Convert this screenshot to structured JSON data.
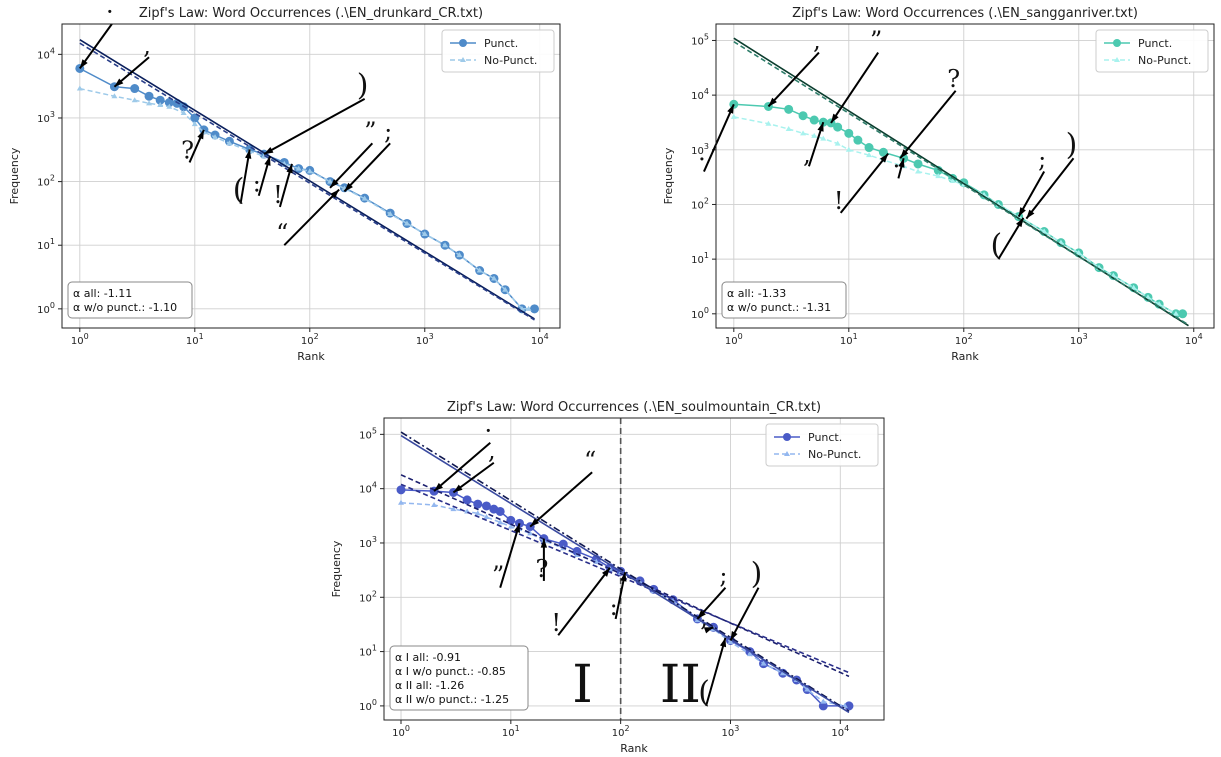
{
  "chart_data": [
    {
      "type": "line",
      "title": "Zipf's Law: Word Occurrences (.\\EN_drunkard_CR.txt)",
      "xlabel": "Rank",
      "ylabel": "Frequency",
      "xscale": "log",
      "yscale": "log",
      "xlim": [
        0.7,
        15000
      ],
      "ylim": [
        0.5,
        30000
      ],
      "grid": true,
      "legend_position": "top-right",
      "x_ticks": [
        "10^0",
        "10^1",
        "10^2",
        "10^3",
        "10^4"
      ],
      "y_ticks": [
        "10^0",
        "10^1",
        "10^2",
        "10^3",
        "10^4"
      ],
      "series": [
        {
          "name": "Punct.",
          "color": "#4f8bc9",
          "style": "solid-circle",
          "points": [
            [
              1,
              6000
            ],
            [
              2,
              3100
            ],
            [
              3,
              2900
            ],
            [
              4,
              2200
            ],
            [
              5,
              1900
            ],
            [
              6,
              1750
            ],
            [
              7,
              1700
            ],
            [
              8,
              1500
            ],
            [
              10,
              1000
            ],
            [
              12,
              650
            ],
            [
              15,
              540
            ],
            [
              20,
              430
            ],
            [
              30,
              320
            ],
            [
              40,
              270
            ],
            [
              60,
              200
            ],
            [
              80,
              160
            ],
            [
              100,
              150
            ],
            [
              150,
              100
            ],
            [
              200,
              80
            ],
            [
              300,
              55
            ],
            [
              500,
              32
            ],
            [
              700,
              22
            ],
            [
              1000,
              15
            ],
            [
              1500,
              10
            ],
            [
              2000,
              7
            ],
            [
              3000,
              4
            ],
            [
              4000,
              3
            ],
            [
              5000,
              2
            ],
            [
              7000,
              1
            ],
            [
              9000,
              1
            ]
          ]
        },
        {
          "name": "No-Punct.",
          "color": "#9ecae9",
          "style": "dashed-tri",
          "points": [
            [
              1,
              2900
            ],
            [
              2,
              2200
            ],
            [
              3,
              1900
            ],
            [
              4,
              1700
            ],
            [
              5,
              1600
            ],
            [
              6,
              1500
            ],
            [
              8,
              1200
            ],
            [
              10,
              800
            ],
            [
              12,
              600
            ],
            [
              15,
              500
            ],
            [
              20,
              400
            ],
            [
              30,
              300
            ],
            [
              40,
              250
            ],
            [
              60,
              190
            ],
            [
              80,
              160
            ],
            [
              100,
              145
            ],
            [
              150,
              100
            ],
            [
              200,
              78
            ],
            [
              300,
              54
            ],
            [
              500,
              31
            ],
            [
              700,
              22
            ],
            [
              1000,
              15
            ],
            [
              1500,
              10
            ],
            [
              2000,
              7
            ],
            [
              3000,
              4
            ],
            [
              4000,
              3
            ],
            [
              5000,
              2
            ],
            [
              7000,
              1
            ],
            [
              8000,
              1
            ]
          ]
        }
      ],
      "fits": [
        {
          "slope": -1.11,
          "c": 17000,
          "color": "#0a1f5c",
          "dash": ""
        },
        {
          "slope": -1.1,
          "c": 15000,
          "color": "#2a3f8a",
          "dash": "5,3"
        }
      ],
      "stats": [
        "α all: -1.11",
        "α w/o punct.: -1.10"
      ],
      "annotations": [
        {
          "label": "·",
          "rank": 1,
          "freq": 6000,
          "lx": 1.9,
          "ly": 30000
        },
        {
          "label": ",",
          "rank": 2,
          "freq": 3100,
          "lx": 4,
          "ly": 9000
        },
        {
          "label": ")",
          "rank": 40,
          "freq": 270,
          "lx": 300,
          "ly": 2000
        },
        {
          "label": "?",
          "rank": 12,
          "freq": 650,
          "lx": 9,
          "ly": 200
        },
        {
          "label": "(",
          "rank": 30,
          "freq": 320,
          "lx": 25,
          "ly": 45
        },
        {
          "label": ":",
          "rank": 45,
          "freq": 250,
          "lx": 36,
          "ly": 60
        },
        {
          "label": "!",
          "rank": 70,
          "freq": 190,
          "lx": 55,
          "ly": 40
        },
        {
          "label": "”",
          "rank": 150,
          "freq": 80,
          "lx": 350,
          "ly": 400
        },
        {
          "label": ";",
          "rank": 200,
          "freq": 70,
          "lx": 500,
          "ly": 400
        },
        {
          "label": "“",
          "rank": 180,
          "freq": 75,
          "lx": 60,
          "ly": 10
        }
      ]
    },
    {
      "type": "line",
      "title": "Zipf's Law: Word Occurrences (.\\EN_sangganriver.txt)",
      "xlabel": "Rank",
      "ylabel": "Frequency",
      "xscale": "log",
      "yscale": "log",
      "xlim": [
        0.7,
        15000
      ],
      "ylim": [
        0.55,
        200000
      ],
      "grid": true,
      "legend_position": "top-right",
      "x_ticks": [
        "10^0",
        "10^1",
        "10^2",
        "10^3",
        "10^4"
      ],
      "y_ticks": [
        "10^0",
        "10^1",
        "10^2",
        "10^3",
        "10^4",
        "10^5"
      ],
      "series": [
        {
          "name": "Punct.",
          "color": "#4cc9b0",
          "style": "solid-circle",
          "points": [
            [
              1,
              6800
            ],
            [
              2,
              6200
            ],
            [
              3,
              5500
            ],
            [
              4,
              4200
            ],
            [
              5,
              3500
            ],
            [
              6,
              3200
            ],
            [
              7,
              3100
            ],
            [
              8,
              2600
            ],
            [
              10,
              2000
            ],
            [
              12,
              1500
            ],
            [
              15,
              1100
            ],
            [
              20,
              900
            ],
            [
              30,
              700
            ],
            [
              40,
              550
            ],
            [
              60,
              420
            ],
            [
              80,
              300
            ],
            [
              100,
              250
            ],
            [
              150,
              150
            ],
            [
              200,
              100
            ],
            [
              300,
              60
            ],
            [
              500,
              32
            ],
            [
              700,
              20
            ],
            [
              1000,
              13
            ],
            [
              1500,
              7
            ],
            [
              2000,
              5
            ],
            [
              3000,
              3
            ],
            [
              4000,
              2
            ],
            [
              5000,
              1.5
            ],
            [
              7000,
              1
            ],
            [
              8000,
              1
            ]
          ]
        },
        {
          "name": "No-Punct.",
          "color": "#a8f2ee",
          "style": "dashed-tri",
          "points": [
            [
              1,
              4000
            ],
            [
              2,
              3000
            ],
            [
              3,
              2400
            ],
            [
              4,
              2000
            ],
            [
              5,
              1800
            ],
            [
              6,
              1600
            ],
            [
              8,
              1300
            ],
            [
              10,
              1000
            ],
            [
              15,
              800
            ],
            [
              20,
              650
            ],
            [
              30,
              500
            ],
            [
              40,
              400
            ],
            [
              60,
              330
            ],
            [
              80,
              270
            ],
            [
              100,
              230
            ],
            [
              150,
              150
            ],
            [
              200,
              100
            ],
            [
              300,
              60
            ],
            [
              500,
              32
            ],
            [
              700,
              20
            ],
            [
              1000,
              13
            ],
            [
              1500,
              7
            ],
            [
              2000,
              5
            ],
            [
              3000,
              3
            ],
            [
              4000,
              2
            ],
            [
              5000,
              1.5
            ],
            [
              7000,
              1
            ]
          ]
        }
      ],
      "fits": [
        {
          "slope": -1.33,
          "c": 110000,
          "color": "#0b3d2e",
          "dash": ""
        },
        {
          "slope": -1.31,
          "c": 95000,
          "color": "#2e7d6a",
          "dash": "5,3"
        }
      ],
      "stats": [
        "α all: -1.33",
        "α w/o punct.: -1.31"
      ],
      "annotations": [
        {
          "label": "·",
          "rank": 1,
          "freq": 6800,
          "lx": 0.55,
          "ly": 400
        },
        {
          "label": ",",
          "rank": 2,
          "freq": 6200,
          "lx": 5.5,
          "ly": 60000
        },
        {
          "label": "”",
          "rank": 7,
          "freq": 3100,
          "lx": 18,
          "ly": 60000
        },
        {
          "label": "?",
          "rank": 28,
          "freq": 700,
          "lx": 85,
          "ly": 12000
        },
        {
          "label": ",",
          "rank": 6,
          "freq": 3200,
          "lx": 4.5,
          "ly": 500
        },
        {
          "label": "!",
          "rank": 22,
          "freq": 850,
          "lx": 8.5,
          "ly": 70
        },
        {
          "label": "·",
          "rank": 30,
          "freq": 700,
          "lx": 27,
          "ly": 300
        },
        {
          "label": ";",
          "rank": 300,
          "freq": 60,
          "lx": 500,
          "ly": 400
        },
        {
          "label": ")",
          "rank": 350,
          "freq": 55,
          "lx": 900,
          "ly": 700
        },
        {
          "label": "(",
          "rank": 330,
          "freq": 57,
          "lx": 200,
          "ly": 10
        }
      ]
    },
    {
      "type": "line",
      "title": "Zipf's Law: Word Occurrences (.\\EN_soulmountain_CR.txt)",
      "xlabel": "Rank",
      "ylabel": "Frequency",
      "xscale": "log",
      "yscale": "log",
      "xlim": [
        0.7,
        25000
      ],
      "ylim": [
        0.55,
        200000
      ],
      "grid": true,
      "legend_position": "top-right",
      "x_ticks": [
        "10^0",
        "10^1",
        "10^2",
        "10^3",
        "10^4"
      ],
      "y_ticks": [
        "10^0",
        "10^1",
        "10^2",
        "10^3",
        "10^4",
        "10^5"
      ],
      "regions": {
        "split_rank": 100,
        "labels": [
          "I",
          "II"
        ]
      },
      "series": [
        {
          "name": "Punct.",
          "color": "#4a5bc7",
          "style": "solid-circle",
          "points": [
            [
              1,
              9500
            ],
            [
              2,
              9000
            ],
            [
              3,
              8500
            ],
            [
              4,
              6200
            ],
            [
              5,
              5200
            ],
            [
              6,
              4800
            ],
            [
              7,
              4200
            ],
            [
              8,
              3800
            ],
            [
              10,
              2600
            ],
            [
              12,
              2300
            ],
            [
              15,
              2000
            ],
            [
              20,
              1200
            ],
            [
              30,
              950
            ],
            [
              40,
              700
            ],
            [
              60,
              500
            ],
            [
              80,
              350
            ],
            [
              100,
              300
            ],
            [
              150,
              200
            ],
            [
              200,
              140
            ],
            [
              300,
              90
            ],
            [
              500,
              40
            ],
            [
              700,
              28
            ],
            [
              1000,
              16
            ],
            [
              1500,
              10
            ],
            [
              2000,
              6
            ],
            [
              3000,
              4
            ],
            [
              4000,
              3
            ],
            [
              5000,
              2
            ],
            [
              7000,
              1
            ],
            [
              12000,
              1
            ]
          ]
        },
        {
          "name": "No-Punct.",
          "color": "#93b7ef",
          "style": "dashed-tri",
          "points": [
            [
              1,
              5500
            ],
            [
              2,
              5000
            ],
            [
              3,
              4200
            ],
            [
              4,
              3800
            ],
            [
              5,
              3500
            ],
            [
              6,
              3000
            ],
            [
              8,
              2400
            ],
            [
              10,
              2000
            ],
            [
              15,
              1500
            ],
            [
              20,
              1100
            ],
            [
              30,
              800
            ],
            [
              40,
              600
            ],
            [
              60,
              450
            ],
            [
              80,
              330
            ],
            [
              100,
              280
            ],
            [
              150,
              190
            ],
            [
              200,
              130
            ],
            [
              300,
              85
            ],
            [
              500,
              38
            ],
            [
              700,
              26
            ],
            [
              1000,
              15
            ],
            [
              1500,
              9
            ],
            [
              2000,
              6
            ],
            [
              3000,
              4
            ],
            [
              4000,
              3
            ],
            [
              5000,
              2
            ],
            [
              7000,
              1.2
            ],
            [
              11000,
              1
            ]
          ]
        }
      ],
      "fits": [
        {
          "slope": -0.91,
          "c": 18000,
          "x0": 1,
          "x1": 12000,
          "color": "#1b1f6e",
          "dash": "5,3"
        },
        {
          "slope": -0.85,
          "c": 12000,
          "x0": 1,
          "x1": 12000,
          "color": "#2a2f8a",
          "dash": "5,3"
        },
        {
          "slope": -1.26,
          "c": 110000,
          "x0": 1,
          "x1": 12000,
          "color": "#101850",
          "dash": "7,3,2,3"
        },
        {
          "slope": -1.25,
          "c": 95000,
          "x0": 1,
          "x1": 12000,
          "color": "#3a4aa0",
          "dash": ""
        }
      ],
      "stats": [
        "α I all: -0.91",
        "α I w/o punct.: -0.85",
        "α II all: -1.26",
        "α II w/o punct.: -1.25"
      ],
      "annotations": [
        {
          "label": "·",
          "rank": 2,
          "freq": 9000,
          "lx": 6.5,
          "ly": 70000
        },
        {
          "label": ",",
          "rank": 3,
          "freq": 8500,
          "lx": 7,
          "ly": 30000
        },
        {
          "label": "“",
          "rank": 15,
          "freq": 2000,
          "lx": 55,
          "ly": 20000
        },
        {
          "label": "”",
          "rank": 12,
          "freq": 2300,
          "lx": 8,
          "ly": 150
        },
        {
          "label": "?",
          "rank": 20,
          "freq": 1200,
          "lx": 20,
          "ly": 200
        },
        {
          "label": "!",
          "rank": 80,
          "freq": 350,
          "lx": 27,
          "ly": 20
        },
        {
          "label": ":",
          "rank": 110,
          "freq": 290,
          "lx": 90,
          "ly": 40
        },
        {
          "label": ";",
          "rank": 500,
          "freq": 40,
          "lx": 900,
          "ly": 150
        },
        {
          "label": ",",
          "rank": 700,
          "freq": 28,
          "lx": 600,
          "ly": 25
        },
        {
          "label": ")",
          "rank": 1000,
          "freq": 16,
          "lx": 1800,
          "ly": 150
        },
        {
          "label": "(",
          "rank": 900,
          "freq": 18,
          "lx": 600,
          "ly": 1
        }
      ]
    }
  ]
}
